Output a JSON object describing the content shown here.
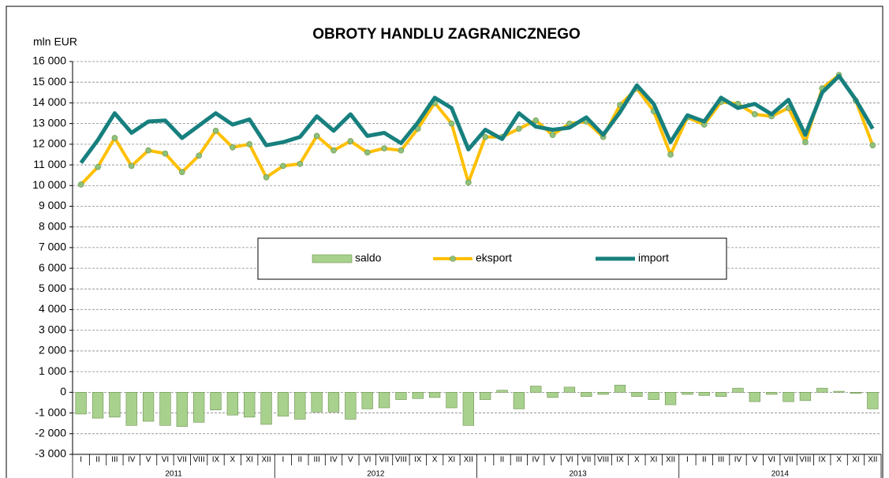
{
  "chart_data": {
    "type": "combo",
    "title": "OBROTY HANDLU ZAGRANICZNEGO",
    "y_label": "mln EUR",
    "categories": [
      "I",
      "II",
      "III",
      "IV",
      "V",
      "VI",
      "VII",
      "VIII",
      "IX",
      "X",
      "XI",
      "XII",
      "I",
      "II",
      "III",
      "IV",
      "V",
      "VI",
      "VII",
      "VIII",
      "IX",
      "X",
      "XI",
      "XII",
      "I",
      "II",
      "III",
      "IV",
      "V",
      "VI",
      "VII",
      "VIII",
      "IX",
      "X",
      "XI",
      "XII",
      "I",
      "II",
      "III",
      "IV",
      "V",
      "VI",
      "VII",
      "VIII",
      "IX",
      "X",
      "XI",
      "XII"
    ],
    "year_labels": [
      "2011",
      "2012",
      "2013",
      "2014"
    ],
    "series": [
      {
        "name": "saldo",
        "type": "bar",
        "color": "#a9d18e",
        "values": [
          -1050,
          -1250,
          -1200,
          -1600,
          -1400,
          -1600,
          -1650,
          -1450,
          -850,
          -1100,
          -1200,
          -1550,
          -1150,
          -1300,
          -950,
          -950,
          -1300,
          -800,
          -750,
          -350,
          -300,
          -250,
          -750,
          -1600,
          -350,
          100,
          -800,
          300,
          -250,
          250,
          -200,
          -100,
          350,
          -200,
          -350,
          -600,
          -100,
          -150,
          -200,
          200,
          -450,
          -100,
          -450,
          -400,
          200,
          50,
          -50,
          -800
        ]
      },
      {
        "name": "eksport",
        "type": "line",
        "color": "#ffc000",
        "marker_color": "#8fc17a",
        "values": [
          10050,
          10900,
          12300,
          10950,
          11700,
          11550,
          10650,
          11450,
          12650,
          11850,
          12000,
          10400,
          10950,
          11050,
          12400,
          11700,
          12150,
          11600,
          11800,
          11700,
          12750,
          14000,
          13000,
          10150,
          12350,
          12350,
          12750,
          13150,
          12450,
          13000,
          13100,
          12350,
          13900,
          14700,
          13600,
          11500,
          13300,
          12950,
          14050,
          13950,
          13450,
          13350,
          13750,
          12100,
          14700,
          15350,
          14100,
          11950
        ]
      },
      {
        "name": "import",
        "type": "line",
        "color": "#17807e",
        "values": [
          11100,
          12200,
          13500,
          12550,
          13100,
          13150,
          12300,
          12900,
          13500,
          12950,
          13200,
          11950,
          12100,
          12350,
          13350,
          12650,
          13450,
          12400,
          12550,
          12050,
          13050,
          14250,
          13750,
          11750,
          12700,
          12250,
          13500,
          12850,
          12700,
          12800,
          13300,
          12450,
          13550,
          14850,
          13950,
          12100,
          13400,
          13100,
          14250,
          13750,
          13950,
          13450,
          14150,
          12450,
          14500,
          15300,
          14150,
          12750
        ]
      }
    ],
    "ylim": [
      -3000,
      16000
    ],
    "yticks": [
      {
        "value": -3000,
        "label": "-3 000"
      },
      {
        "value": -2000,
        "label": "-2 000"
      },
      {
        "value": -1000,
        "label": "-1 000"
      },
      0,
      {
        "value": 1000,
        "label": "1 000"
      },
      {
        "value": 2000,
        "label": "2 000"
      },
      {
        "value": 3000,
        "label": "3 000"
      },
      {
        "value": 4000,
        "label": "4 000"
      },
      {
        "value": 5000,
        "label": "5 000"
      },
      {
        "value": 6000,
        "label": "6 000"
      },
      {
        "value": 7000,
        "label": "7 000"
      },
      {
        "value": 8000,
        "label": "8 000"
      },
      {
        "value": 9000,
        "label": "9 000"
      },
      {
        "value": 10000,
        "label": "10 000"
      },
      {
        "value": 11000,
        "label": "11 000"
      },
      {
        "value": 12000,
        "label": "12 000"
      },
      {
        "value": 13000,
        "label": "13 000"
      },
      {
        "value": 14000,
        "label": "14 000"
      },
      {
        "value": 15000,
        "label": "15 000"
      },
      {
        "value": 16000,
        "label": "16 000"
      }
    ],
    "grid": true
  }
}
